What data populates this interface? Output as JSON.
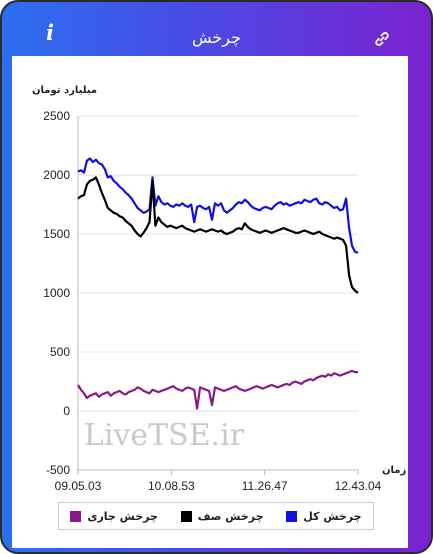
{
  "header": {
    "title": "چرخش",
    "info_label": "i"
  },
  "icons": {
    "info": "info-icon",
    "link": "link-icon"
  },
  "colors": {
    "total": "#1010e0",
    "queue": "#000000",
    "current": "#8a1a8a"
  },
  "watermark": "LiveTSE.ir",
  "legend": {
    "total": "چرخش کل",
    "queue": "چرخش صف",
    "current": "چرخش جاری"
  },
  "chart_data": {
    "type": "line",
    "ylabel": "میلیارد تومان",
    "xlabel": "زمان",
    "ylim": [
      -500,
      2500
    ],
    "yticks": [
      -500,
      0,
      500,
      1000,
      1500,
      2000,
      2500
    ],
    "xtick_labels": [
      "09.05.03",
      "10.08.53",
      "11.26.47",
      "12.43.04"
    ],
    "x": [
      0,
      3,
      6,
      9,
      12,
      15,
      18,
      21,
      24,
      27,
      30,
      33,
      36,
      39,
      42,
      45,
      48,
      51,
      54,
      57,
      60,
      63,
      66,
      69,
      72,
      75,
      78,
      81,
      84,
      87,
      90,
      93,
      96,
      99,
      102,
      105,
      108,
      111,
      114,
      117,
      120,
      123,
      126,
      129,
      132,
      135,
      138,
      141,
      144,
      147,
      150,
      153,
      156,
      159,
      162,
      165,
      168,
      171,
      174,
      177,
      180,
      183,
      186,
      189,
      192,
      195,
      198,
      201,
      204,
      207,
      210,
      213,
      216,
      219,
      222,
      225,
      228,
      231,
      234,
      237,
      240,
      243,
      246,
      249,
      252,
      255,
      258,
      261,
      264,
      267,
      270,
      273,
      276,
      279,
      282
    ],
    "series": [
      {
        "name": "چرخش کل",
        "values": [
          2030,
          2040,
          2020,
          2120,
          2140,
          2110,
          2130,
          2100,
          2090,
          2050,
          1980,
          1990,
          1950,
          1930,
          1900,
          1880,
          1850,
          1830,
          1800,
          1760,
          1720,
          1700,
          1680,
          1690,
          1710,
          1980,
          1740,
          1820,
          1770,
          1750,
          1760,
          1740,
          1730,
          1750,
          1740,
          1760,
          1740,
          1730,
          1750,
          1600,
          1730,
          1740,
          1720,
          1710,
          1730,
          1620,
          1760,
          1740,
          1760,
          1700,
          1680,
          1700,
          1720,
          1750,
          1770,
          1760,
          1790,
          1770,
          1740,
          1720,
          1710,
          1700,
          1720,
          1730,
          1720,
          1710,
          1740,
          1760,
          1770,
          1750,
          1760,
          1740,
          1750,
          1760,
          1770,
          1760,
          1790,
          1780,
          1770,
          1790,
          1800,
          1760,
          1750,
          1770,
          1760,
          1740,
          1720,
          1730,
          1700,
          1710,
          1800,
          1550,
          1400,
          1350,
          1340
        ]
      },
      {
        "name": "چرخش صف",
        "values": [
          1800,
          1820,
          1830,
          1920,
          1950,
          1960,
          1980,
          1920,
          1850,
          1790,
          1720,
          1700,
          1680,
          1670,
          1650,
          1640,
          1610,
          1590,
          1570,
          1530,
          1500,
          1480,
          1510,
          1550,
          1600,
          1950,
          1570,
          1640,
          1600,
          1580,
          1560,
          1570,
          1560,
          1550,
          1560,
          1570,
          1550,
          1540,
          1530,
          1520,
          1530,
          1540,
          1530,
          1520,
          1530,
          1540,
          1530,
          1520,
          1530,
          1510,
          1500,
          1510,
          1520,
          1540,
          1550,
          1540,
          1590,
          1560,
          1540,
          1530,
          1520,
          1510,
          1520,
          1530,
          1520,
          1510,
          1520,
          1530,
          1540,
          1550,
          1540,
          1530,
          1520,
          1510,
          1510,
          1520,
          1530,
          1520,
          1510,
          1500,
          1510,
          1520,
          1500,
          1490,
          1480,
          1470,
          1460,
          1470,
          1460,
          1450,
          1400,
          1150,
          1050,
          1020,
          1000
        ]
      },
      {
        "name": "چرخش جاری",
        "values": [
          220,
          180,
          150,
          110,
          130,
          140,
          150,
          120,
          140,
          150,
          160,
          130,
          150,
          160,
          170,
          150,
          140,
          160,
          170,
          180,
          200,
          190,
          170,
          160,
          150,
          180,
          170,
          160,
          170,
          180,
          190,
          200,
          210,
          190,
          180,
          170,
          190,
          200,
          190,
          180,
          20,
          200,
          190,
          180,
          170,
          50,
          200,
          190,
          180,
          170,
          180,
          190,
          200,
          210,
          190,
          180,
          170,
          180,
          190,
          200,
          210,
          200,
          190,
          200,
          210,
          220,
          210,
          200,
          210,
          220,
          230,
          220,
          240,
          250,
          240,
          230,
          250,
          260,
          270,
          260,
          280,
          290,
          300,
          290,
          310,
          300,
          320,
          310,
          300,
          310,
          320,
          330,
          340,
          330,
          330
        ]
      }
    ]
  }
}
